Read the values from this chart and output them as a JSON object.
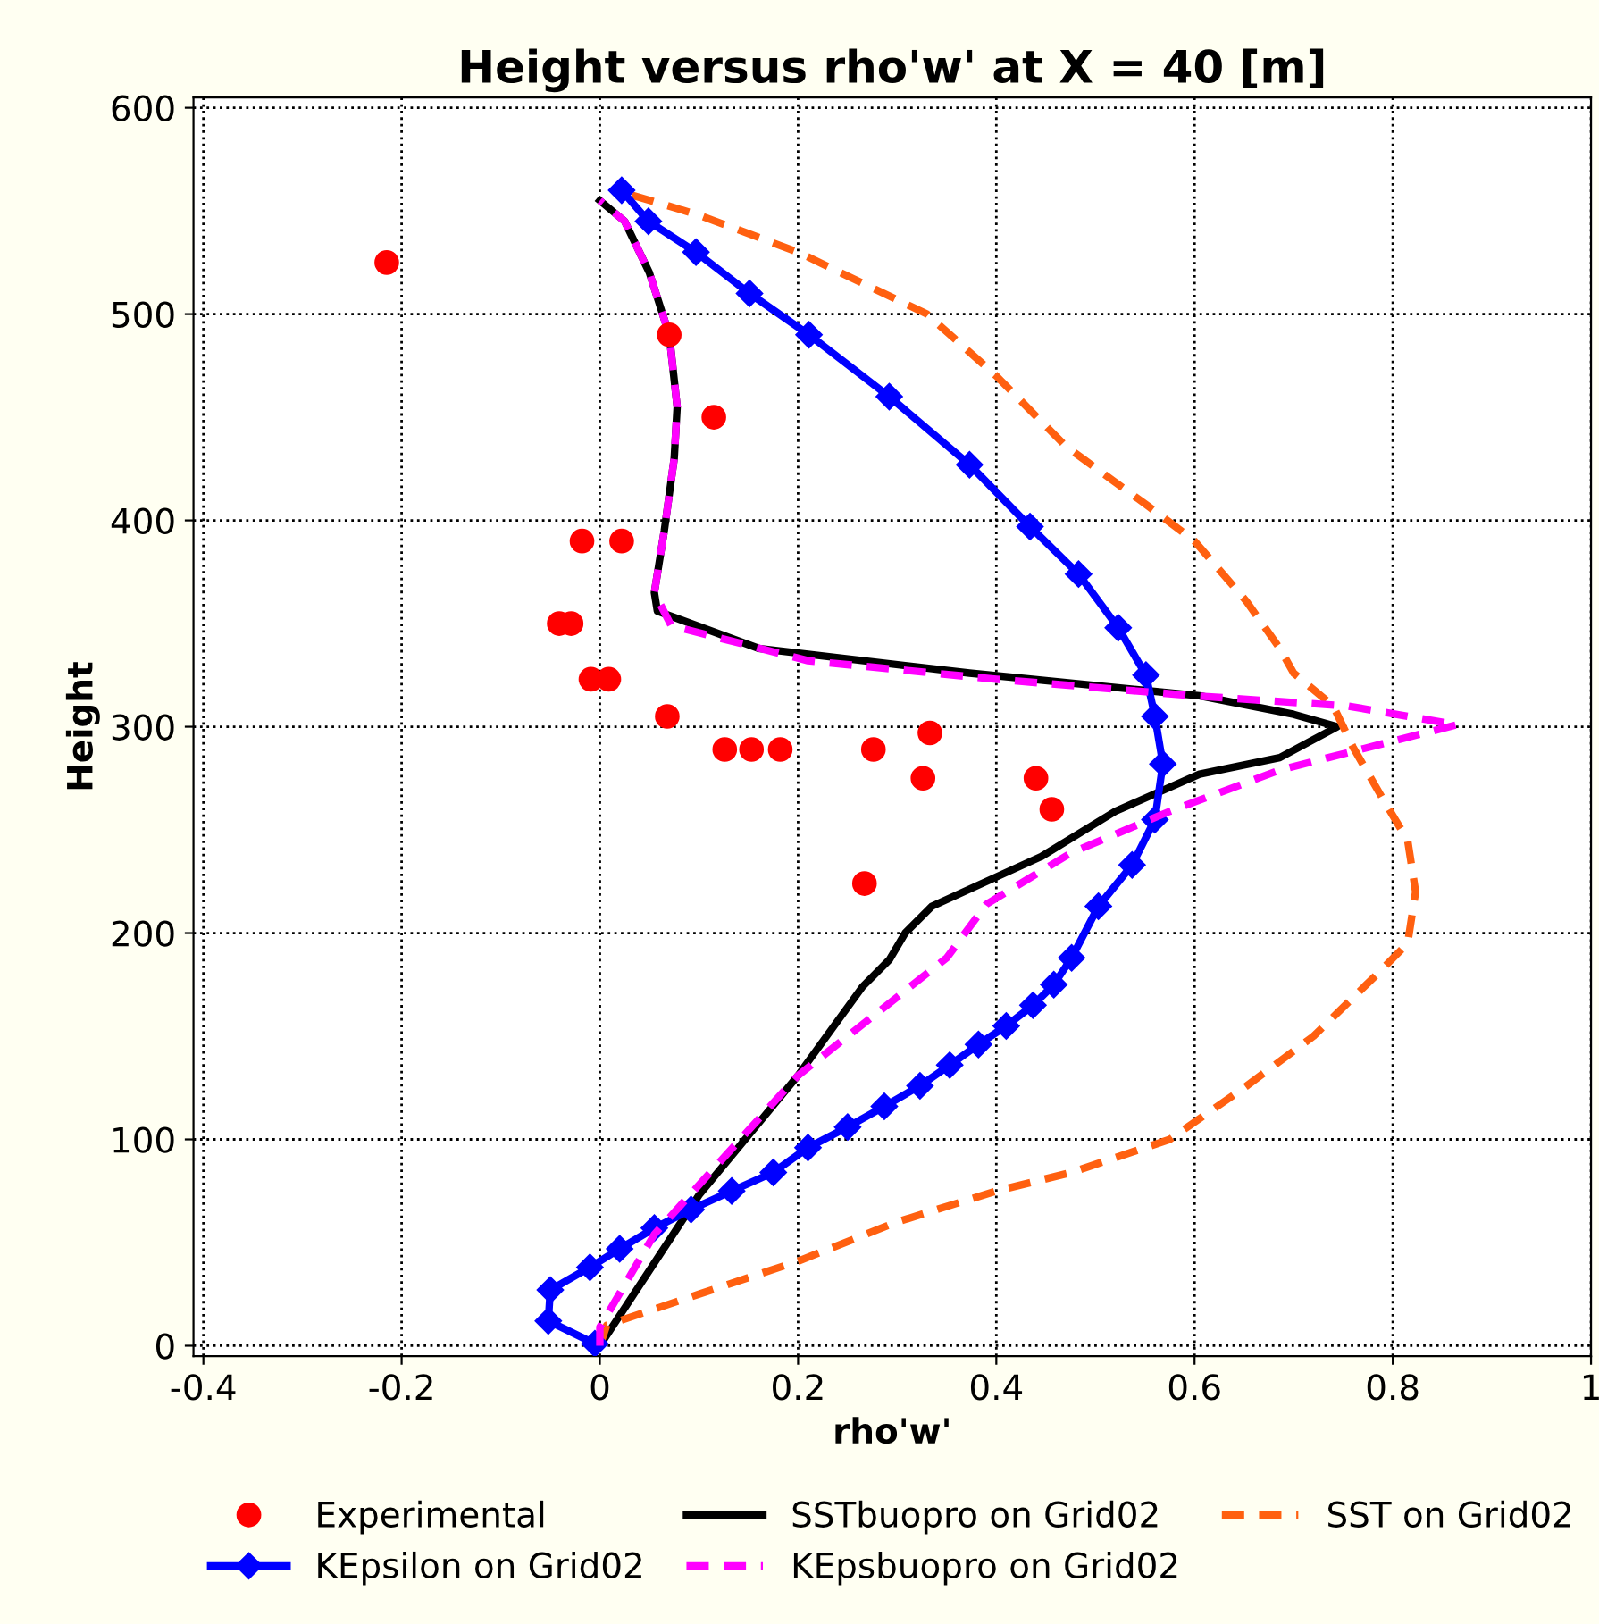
{
  "chart_data": {
    "type": "line",
    "title": "Height versus rho'w' at X = 40 [m]",
    "xlabel": "rho'w'",
    "ylabel": "Height",
    "xlim": [
      -0.41,
      1.0
    ],
    "ylim": [
      -5,
      605
    ],
    "xticks": [
      -0.4,
      -0.2,
      0,
      0.2,
      0.4,
      0.6,
      0.8,
      1
    ],
    "yticks": [
      0,
      100,
      200,
      300,
      400,
      500,
      600
    ],
    "grid": true,
    "legend": "bottom",
    "series": [
      {
        "name": "Experimental",
        "type": "scatter",
        "marker": "circle",
        "color": "#ff0000",
        "x": [
          -0.215,
          0.07,
          0.115,
          -0.018,
          0.022,
          -0.041,
          -0.029,
          -0.009,
          0.009,
          0.068,
          0.126,
          0.153,
          0.182,
          0.276,
          0.333,
          0.326,
          0.44,
          0.456,
          0.267
        ],
        "values": [
          525,
          490,
          450,
          390,
          390,
          350,
          350,
          323,
          323,
          305,
          289,
          289,
          289,
          289,
          297,
          275,
          275,
          260,
          224
        ]
      },
      {
        "name": "SSTbuopro on Grid02",
        "line_style": "solid",
        "marker": "none",
        "color": "#000000",
        "x": [
          0,
          0.1,
          0.2,
          0.265,
          0.292,
          0.308,
          0.335,
          0.445,
          0.52,
          0.605,
          0.686,
          0.744,
          0.7,
          0.605,
          0.373,
          0.16,
          0.058,
          0.055,
          0.065,
          0.075,
          0.078,
          0.07,
          0.05,
          0.025,
          0
        ],
        "values": [
          0,
          73,
          131,
          174,
          187,
          200,
          213,
          237,
          259,
          277,
          285,
          300,
          306,
          315,
          326,
          338,
          356,
          365,
          395,
          430,
          455,
          490,
          520,
          545,
          555
        ]
      },
      {
        "name": "SST on Grid02",
        "line_style": "dashed",
        "marker": "none",
        "color": "#ff6010",
        "x": [
          0,
          0.007,
          0.1,
          0.2,
          0.3,
          0.4,
          0.476,
          0.575,
          0.65,
          0.72,
          0.784,
          0.815,
          0.823,
          0.815,
          0.79,
          0.76,
          0.74,
          0.7,
          0.686,
          0.652,
          0.6,
          0.553,
          0.47,
          0.4,
          0.33,
          0.2,
          0.1,
          0.03
        ],
        "values": [
          0,
          10,
          25,
          41,
          60,
          75,
          84,
          100,
          125,
          150,
          180,
          195,
          220,
          245,
          265,
          290,
          310,
          326,
          338,
          361,
          390,
          407,
          436,
          470,
          500,
          530,
          548,
          558
        ]
      },
      {
        "name": "KEpsilon on Grid02",
        "line_style": "solid",
        "marker": "diamond",
        "color": "#0000ff",
        "x": [
          -0.005,
          -0.052,
          -0.05,
          -0.01,
          0.02,
          0.055,
          0.092,
          0.133,
          0.175,
          0.21,
          0.25,
          0.287,
          0.323,
          0.353,
          0.382,
          0.41,
          0.437,
          0.458,
          0.476,
          0.503,
          0.537,
          0.56,
          0.568,
          0.56,
          0.551,
          0.523,
          0.483,
          0.434,
          0.373,
          0.292,
          0.211,
          0.151,
          0.097,
          0.049,
          0.022
        ],
        "values": [
          1,
          12,
          27,
          38,
          47,
          57,
          66,
          75,
          84,
          96,
          106,
          116,
          126,
          136,
          146,
          155,
          165,
          175,
          188,
          213,
          233,
          255,
          282,
          305,
          325,
          348,
          374,
          397,
          427,
          460,
          490,
          510,
          530,
          545,
          560
        ]
      },
      {
        "name": "KEpsbuopro on Grid02",
        "line_style": "dashed",
        "marker": "none",
        "color": "#ff00ff",
        "x": [
          0,
          0.0,
          0.055,
          0.2,
          0.35,
          0.39,
          0.476,
          0.575,
          0.686,
          0.865,
          0.755,
          0.6,
          0.4,
          0.21,
          0.072,
          0.055,
          0.065,
          0.075,
          0.078,
          0.07,
          0.05,
          0.025,
          0
        ],
        "values": [
          0,
          9,
          54,
          131,
          188,
          214,
          239,
          259,
          279,
          301,
          310,
          315,
          323,
          332,
          349,
          365,
          395,
          430,
          455,
          490,
          520,
          545,
          555
        ]
      }
    ]
  }
}
